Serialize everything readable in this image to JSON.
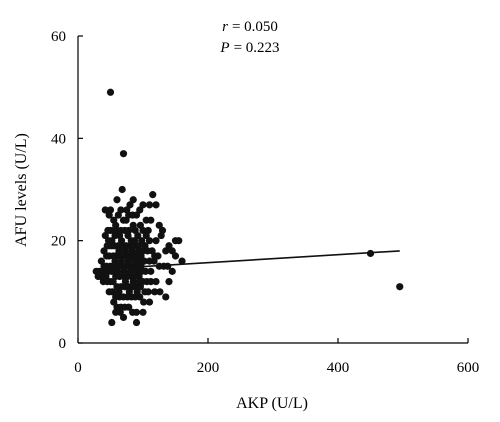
{
  "chart_data": {
    "type": "scatter",
    "xlabel": "AKP (U/L)",
    "ylabel": "AFU levels (U/L)",
    "xlim": [
      0,
      600
    ],
    "ylim": [
      0,
      60
    ],
    "xticks": [
      0,
      200,
      400,
      600
    ],
    "yticks": [
      0,
      20,
      40,
      60
    ],
    "grid": false,
    "stats": {
      "r_label": "r",
      "r_value": "= 0.050",
      "p_label": "P",
      "p_value": "= 0.223"
    },
    "fit_line": {
      "x": [
        45,
        495
      ],
      "y": [
        14.5,
        18.0
      ]
    },
    "points": [
      [
        50,
        49
      ],
      [
        70,
        37
      ],
      [
        68,
        30
      ],
      [
        60,
        28
      ],
      [
        85,
        28
      ],
      [
        115,
        29
      ],
      [
        95,
        26
      ],
      [
        100,
        27
      ],
      [
        110,
        27
      ],
      [
        120,
        27
      ],
      [
        80,
        27
      ],
      [
        75,
        26
      ],
      [
        90,
        25
      ],
      [
        105,
        24
      ],
      [
        112,
        24
      ],
      [
        125,
        23
      ],
      [
        130,
        22
      ],
      [
        100,
        22
      ],
      [
        85,
        23
      ],
      [
        70,
        24
      ],
      [
        55,
        24
      ],
      [
        50,
        26
      ],
      [
        42,
        26
      ],
      [
        48,
        25
      ],
      [
        150,
        20
      ],
      [
        155,
        20
      ],
      [
        140,
        19
      ],
      [
        135,
        18
      ],
      [
        145,
        18
      ],
      [
        120,
        20
      ],
      [
        128,
        21
      ],
      [
        110,
        20
      ],
      [
        105,
        21
      ],
      [
        98,
        20
      ],
      [
        92,
        21
      ],
      [
        88,
        22
      ],
      [
        78,
        22
      ],
      [
        72,
        22
      ],
      [
        66,
        22
      ],
      [
        60,
        22
      ],
      [
        55,
        22
      ],
      [
        50,
        22
      ],
      [
        46,
        22
      ],
      [
        42,
        21
      ],
      [
        45,
        19
      ],
      [
        48,
        19
      ],
      [
        52,
        19
      ],
      [
        56,
        19
      ],
      [
        62,
        19
      ],
      [
        68,
        19
      ],
      [
        74,
        19
      ],
      [
        80,
        19
      ],
      [
        86,
        19
      ],
      [
        93,
        19
      ],
      [
        100,
        18
      ],
      [
        107,
        18
      ],
      [
        114,
        18
      ],
      [
        118,
        17
      ],
      [
        123,
        17
      ],
      [
        40,
        18
      ],
      [
        44,
        17
      ],
      [
        48,
        17
      ],
      [
        54,
        17
      ],
      [
        58,
        17
      ],
      [
        64,
        17
      ],
      [
        70,
        17
      ],
      [
        76,
        17
      ],
      [
        82,
        17
      ],
      [
        88,
        17
      ],
      [
        95,
        16
      ],
      [
        102,
        16
      ],
      [
        110,
        16
      ],
      [
        117,
        16
      ],
      [
        125,
        15
      ],
      [
        132,
        15
      ],
      [
        138,
        15
      ],
      [
        36,
        16
      ],
      [
        40,
        15
      ],
      [
        44,
        15
      ],
      [
        50,
        15
      ],
      [
        56,
        15
      ],
      [
        62,
        15
      ],
      [
        68,
        15
      ],
      [
        74,
        15
      ],
      [
        80,
        15
      ],
      [
        86,
        15
      ],
      [
        92,
        15
      ],
      [
        98,
        14
      ],
      [
        104,
        14
      ],
      [
        112,
        14
      ],
      [
        28,
        14
      ],
      [
        33,
        14
      ],
      [
        38,
        14
      ],
      [
        42,
        14
      ],
      [
        47,
        14
      ],
      [
        52,
        14
      ],
      [
        58,
        13
      ],
      [
        64,
        13
      ],
      [
        70,
        13
      ],
      [
        76,
        13
      ],
      [
        82,
        13
      ],
      [
        88,
        13
      ],
      [
        94,
        13
      ],
      [
        100,
        12
      ],
      [
        106,
        12
      ],
      [
        112,
        12
      ],
      [
        120,
        12
      ],
      [
        45,
        12
      ],
      [
        50,
        12
      ],
      [
        54,
        12
      ],
      [
        60,
        11
      ],
      [
        66,
        11
      ],
      [
        72,
        11
      ],
      [
        78,
        11
      ],
      [
        84,
        11
      ],
      [
        90,
        11
      ],
      [
        96,
        11
      ],
      [
        103,
        10
      ],
      [
        108,
        10
      ],
      [
        118,
        10
      ],
      [
        126,
        10
      ],
      [
        48,
        10
      ],
      [
        53,
        10
      ],
      [
        58,
        9
      ],
      [
        64,
        9
      ],
      [
        70,
        9
      ],
      [
        76,
        9
      ],
      [
        82,
        9
      ],
      [
        88,
        9
      ],
      [
        95,
        9
      ],
      [
        101,
        8
      ],
      [
        110,
        8
      ],
      [
        55,
        8
      ],
      [
        60,
        7
      ],
      [
        66,
        7
      ],
      [
        72,
        7
      ],
      [
        78,
        7
      ],
      [
        84,
        6
      ],
      [
        90,
        6
      ],
      [
        70,
        5
      ],
      [
        52,
        4
      ],
      [
        90,
        4
      ],
      [
        65,
        6
      ],
      [
        58,
        6
      ],
      [
        100,
        6
      ],
      [
        150,
        17
      ],
      [
        145,
        14
      ],
      [
        160,
        16
      ],
      [
        140,
        12
      ],
      [
        135,
        9
      ],
      [
        62,
        25
      ],
      [
        66,
        26
      ],
      [
        74,
        24
      ],
      [
        78,
        25
      ],
      [
        84,
        25
      ],
      [
        58,
        23
      ],
      [
        64,
        21
      ],
      [
        82,
        20
      ],
      [
        96,
        23
      ],
      [
        108,
        22
      ],
      [
        52,
        20
      ],
      [
        47,
        20
      ],
      [
        57,
        21
      ],
      [
        67,
        20
      ],
      [
        77,
        21
      ],
      [
        87,
        20
      ],
      [
        97,
        17
      ],
      [
        103,
        19
      ],
      [
        63,
        18
      ],
      [
        73,
        18
      ],
      [
        83,
        18
      ],
      [
        93,
        18
      ],
      [
        43,
        13
      ],
      [
        39,
        12
      ],
      [
        35,
        13
      ],
      [
        31,
        13
      ],
      [
        57,
        16
      ],
      [
        67,
        16
      ],
      [
        77,
        16
      ],
      [
        87,
        16
      ],
      [
        97,
        15
      ],
      [
        61,
        14
      ],
      [
        71,
        14
      ],
      [
        81,
        14
      ],
      [
        91,
        14
      ],
      [
        73,
        12
      ],
      [
        85,
        12
      ],
      [
        95,
        12
      ],
      [
        63,
        10
      ],
      [
        79,
        10
      ],
      [
        91,
        10
      ],
      [
        450,
        17.5
      ],
      [
        495,
        11
      ]
    ]
  }
}
